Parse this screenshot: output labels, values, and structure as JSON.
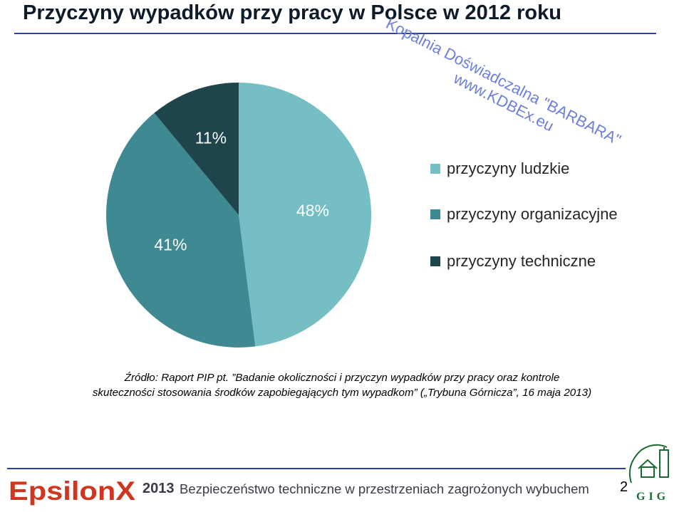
{
  "slide": {
    "title": "Przyczyny wypadków przy pracy w Polsce w 2012 roku"
  },
  "watermark": {
    "line1": "Kopalnia Doświadczalna \"BARBARA\"",
    "line2": "www.KDBEx.eu",
    "color": "#6d7fdc"
  },
  "chart_data": {
    "type": "pie",
    "title": "",
    "categories": [
      "przyczyny ludzkie",
      "przyczyny organizacyjne",
      "przyczyny techniczne"
    ],
    "values": [
      48,
      41,
      11
    ],
    "value_labels": [
      "48%",
      "41%",
      "11%"
    ],
    "unit": "%",
    "colors": [
      "#75bec4",
      "#3f8a92",
      "#1e454c"
    ],
    "label_colors": [
      "#ffffff",
      "#ffffff",
      "#ffffff"
    ],
    "start_angle_deg": 0,
    "direction": "clockwise",
    "legend_position": "right"
  },
  "source": {
    "line1": "Źródło: Raport PIP pt. ”Badanie okoliczności i przyczyn wypadków przy pracy oraz kontrole",
    "line2": "skuteczności stosowania środków zapobiegających tym wypadkom” („Trybuna Górnicza”, 16 maja 2013)"
  },
  "footer": {
    "logo_text": "EpsilonX",
    "year": "2013",
    "text": "Bezpieczeństwo techniczne w przestrzeniach zagrożonych wybuchem",
    "page_number": "2",
    "gig_logo_text": "GIG",
    "accent_color": "#d0351f"
  }
}
